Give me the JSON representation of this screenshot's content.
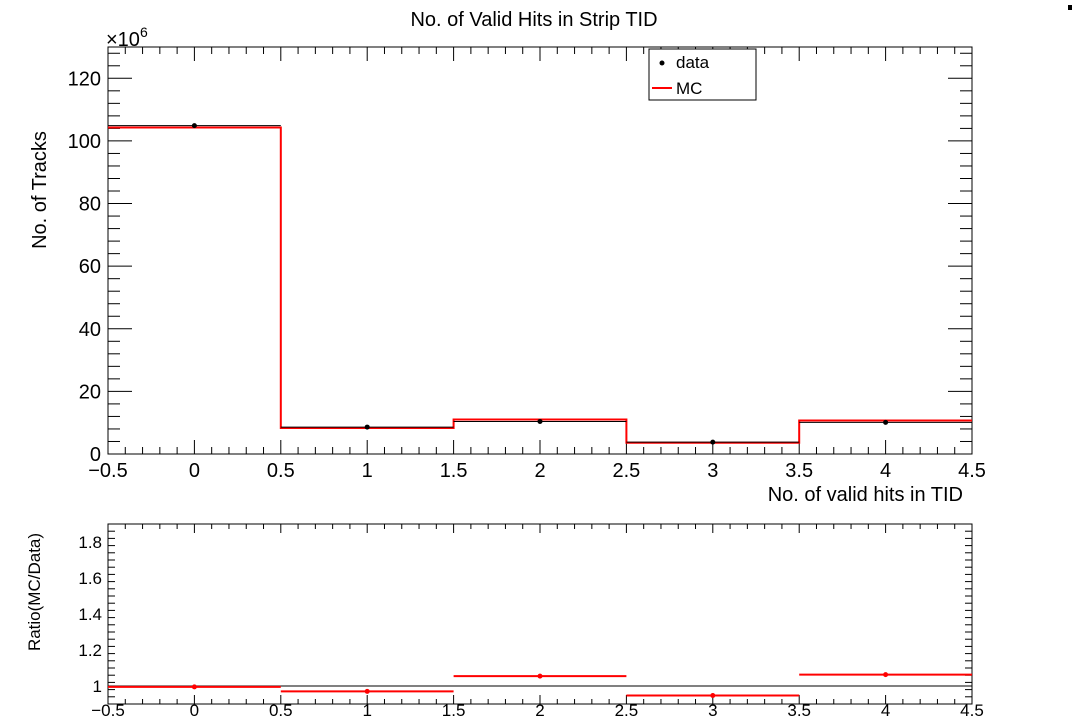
{
  "chart_data": [
    {
      "type": "step",
      "title": "No. of Valid Hits in Strip TID",
      "xlabel": "No. of valid hits in TID",
      "ylabel": "No. of Tracks",
      "y_multiplier": "×10",
      "y_multiplier_exp": "6",
      "xlim": [
        -0.5,
        4.5
      ],
      "ylim": [
        0,
        130
      ],
      "x_ticks": [
        "−0.5",
        "0",
        "0.5",
        "1",
        "1.5",
        "2",
        "2.5",
        "3",
        "3.5",
        "4",
        "4.5"
      ],
      "y_ticks": [
        "0",
        "20",
        "40",
        "60",
        "80",
        "100",
        "120"
      ],
      "bins": [
        0,
        1,
        2,
        3,
        4
      ],
      "legend": {
        "position": "top-right",
        "entries": [
          "data",
          "MC"
        ]
      },
      "series": [
        {
          "name": "data",
          "style": "points",
          "color": "#000000",
          "values": [
            104.9,
            8.6,
            10.4,
            3.8,
            10.1
          ]
        },
        {
          "name": "MC",
          "style": "step",
          "color": "#ff0000",
          "values": [
            104.3,
            8.3,
            11.0,
            3.6,
            10.7
          ]
        }
      ]
    },
    {
      "type": "scatter",
      "ylabel": "Ratio(MC/Data)",
      "xlim": [
        -0.5,
        4.5
      ],
      "ylim": [
        0.9,
        1.9
      ],
      "x_ticks": [
        "−0.5",
        "0",
        "0.5",
        "1",
        "1.5",
        "2",
        "2.5",
        "3",
        "3.5",
        "4",
        "4.5"
      ],
      "y_ticks": [
        "1",
        "1.2",
        "1.4",
        "1.6",
        "1.8"
      ],
      "reference_line": 1.0,
      "series": [
        {
          "name": "Ratio",
          "color": "#ff0000",
          "x": [
            0,
            1,
            2,
            3,
            4
          ],
          "values": [
            0.995,
            0.97,
            1.055,
            0.947,
            1.063
          ]
        }
      ]
    }
  ]
}
